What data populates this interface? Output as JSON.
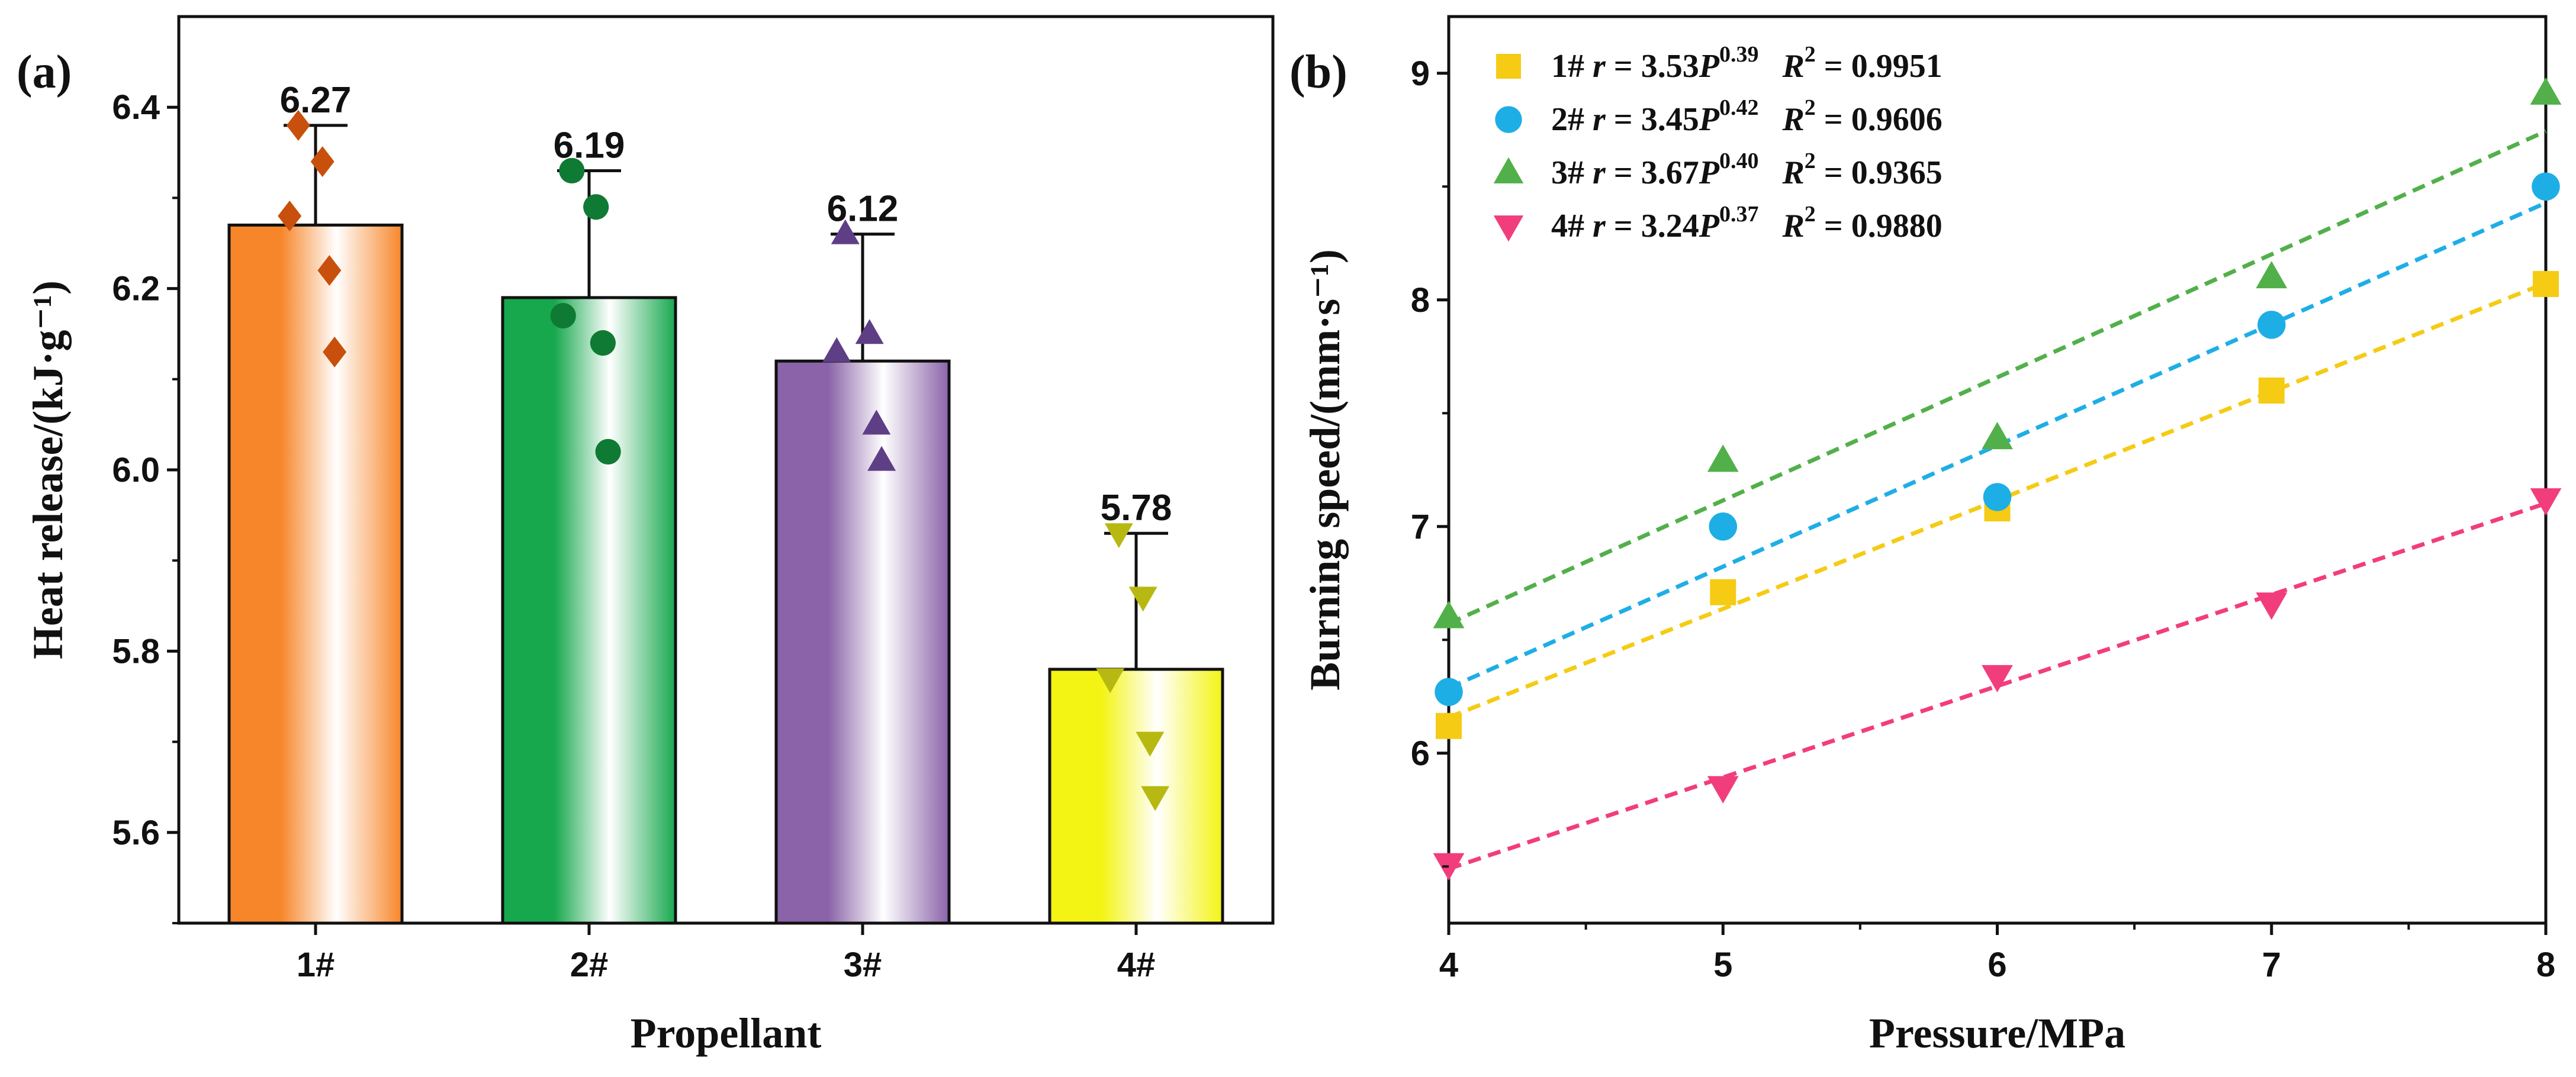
{
  "chart_data": [
    {
      "panel": "(a)",
      "type": "bar",
      "xlabel": "Propellant",
      "ylabel": "Heat release/(kJ·g⁻¹)",
      "ylim": [
        5.5,
        6.5
      ],
      "yticks": [
        "5.6",
        "5.8",
        "6.0",
        "6.2",
        "6.4"
      ],
      "categories": [
        "1#",
        "2#",
        "3#",
        "4#"
      ],
      "values": [
        6.27,
        6.19,
        6.12,
        5.78
      ],
      "value_labels": [
        "6.27",
        "6.19",
        "6.12",
        "5.78"
      ],
      "error_upper": [
        6.38,
        6.33,
        6.26,
        5.93
      ],
      "bar_colors": [
        "#f7862a",
        "#17a84e",
        "#8a63a8",
        "#f4f414"
      ],
      "point_colors": [
        "#c8500c",
        "#0f7a33",
        "#5e3f86",
        "#b8b812"
      ],
      "point_markers": [
        "diamond",
        "circle",
        "triangle-up",
        "triangle-down"
      ],
      "points": [
        [
          6.38,
          6.34,
          6.28,
          6.22,
          6.13
        ],
        [
          6.33,
          6.29,
          6.17,
          6.14,
          6.02
        ],
        [
          6.26,
          6.15,
          6.13,
          6.05,
          6.01
        ],
        [
          5.93,
          5.86,
          5.77,
          5.7,
          5.64
        ]
      ]
    },
    {
      "panel": "(b)",
      "type": "scatter",
      "xlabel": "Pressure/MPa",
      "ylabel": "Burning speed/(mm·s⁻¹)",
      "xlim": [
        4,
        8
      ],
      "ylim": [
        5.25,
        9.25
      ],
      "xticks": [
        "4",
        "5",
        "6",
        "7",
        "8"
      ],
      "yticks": [
        "6",
        "7",
        "8",
        "9"
      ],
      "x": [
        4,
        5,
        6,
        7,
        8
      ],
      "series": [
        {
          "name": "1#",
          "marker": "square",
          "color": "#f5cb14",
          "values": [
            6.12,
            6.71,
            7.08,
            7.6,
            8.07
          ],
          "fit_a": 3.53,
          "fit_b": 0.39,
          "eq_r": "r",
          "eq_eq": "= 3.53P",
          "eq_exp": "0.39",
          "eq_R": "R",
          "eq_R2": "2",
          "eq_r2val": "= 0.9951"
        },
        {
          "name": "2#",
          "marker": "circle",
          "color": "#1eaee6",
          "values": [
            6.27,
            7.0,
            7.13,
            7.89,
            8.5
          ],
          "fit_a": 3.45,
          "fit_b": 0.42,
          "eq_r": "r",
          "eq_eq": "= 3.45P",
          "eq_exp": "0.42",
          "eq_R": "R",
          "eq_R2": "2",
          "eq_r2val": "= 0.9606"
        },
        {
          "name": "3#",
          "marker": "triangle-up",
          "color": "#52b04a",
          "values": [
            6.6,
            7.29,
            7.39,
            8.1,
            8.91
          ],
          "fit_a": 3.67,
          "fit_b": 0.4,
          "eq_r": "r",
          "eq_eq": "= 3.67P",
          "eq_exp": "0.40",
          "eq_R": "R",
          "eq_R2": "2",
          "eq_r2val": "= 0.9365"
        },
        {
          "name": "4#",
          "marker": "triangle-down",
          "color": "#f23d7d",
          "values": [
            5.51,
            5.85,
            6.34,
            6.66,
            7.12
          ],
          "fit_a": 3.24,
          "fit_b": 0.37,
          "eq_r": "r",
          "eq_eq": "= 3.24P",
          "eq_exp": "0.37",
          "eq_R": "R",
          "eq_R2": "2",
          "eq_r2val": "= 0.9880"
        }
      ]
    }
  ]
}
